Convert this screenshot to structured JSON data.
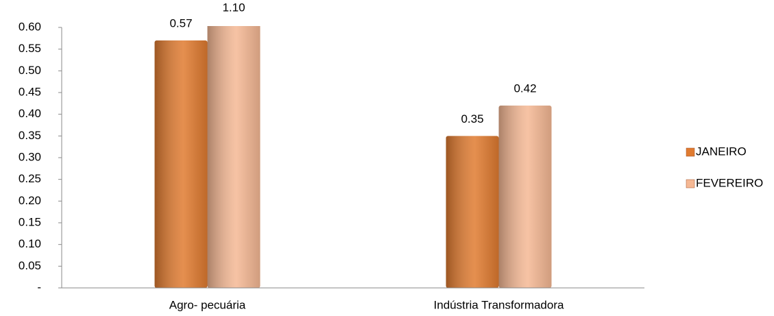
{
  "chart_data": {
    "type": "bar",
    "categories": [
      "Agro- pecuária",
      "Indústria Transformadora"
    ],
    "series": [
      {
        "name": "JANEIRO",
        "color": "#e07b30",
        "values": [
          0.57,
          0.35
        ]
      },
      {
        "name": "FEVEREIRO",
        "color": "#f5b894",
        "values": [
          1.1,
          0.42
        ],
        "value_labels": [
          "1.10",
          "0.42"
        ]
      }
    ],
    "ylim": [
      0,
      0.6
    ],
    "yticks": [
      {
        "value": 0,
        "label": "-"
      },
      0.05,
      {
        "value": 0.1,
        "label": "0.10"
      },
      0.15,
      {
        "value": 0.2,
        "label": "0.20"
      },
      0.25,
      {
        "value": 0.3,
        "label": "0.30"
      },
      0.35,
      {
        "value": 0.4,
        "label": "0.40"
      },
      0.45,
      {
        "value": 0.5,
        "label": "0.50"
      },
      0.55,
      {
        "value": 0.6,
        "label": "0.60"
      }
    ],
    "grid": false,
    "legend": "right"
  }
}
